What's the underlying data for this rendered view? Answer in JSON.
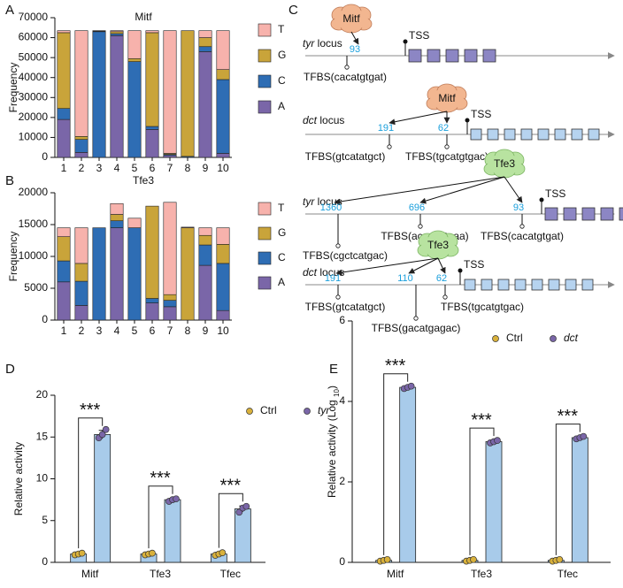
{
  "chart_data": [
    {
      "type": "stacked_bar",
      "label": "A",
      "title": "Mitf",
      "ylabel": "Frequency",
      "categories": [
        "1",
        "2",
        "3",
        "4",
        "5",
        "6",
        "7",
        "8",
        "9",
        "10"
      ],
      "ylim": [
        0,
        70000
      ],
      "yticks": [
        0,
        10000,
        20000,
        30000,
        40000,
        50000,
        60000,
        70000
      ],
      "series": [
        {
          "name": "A",
          "color": "#7a66a8",
          "values": [
            19000,
            2500,
            0,
            61000,
            0,
            14000,
            1000,
            0,
            53000,
            2000
          ]
        },
        {
          "name": "C",
          "color": "#2e6db4",
          "values": [
            5500,
            6500,
            63000,
            1000,
            48000,
            1500,
            500,
            500,
            2500,
            37000
          ]
        },
        {
          "name": "G",
          "color": "#c9a43a",
          "values": [
            38000,
            1500,
            300,
            1000,
            1500,
            47000,
            500,
            63000,
            4500,
            5000
          ]
        },
        {
          "name": "T",
          "color": "#f7b2ac",
          "values": [
            1000,
            53000,
            200,
            500,
            14000,
            1000,
            61500,
            0,
            3500,
            19500
          ]
        }
      ],
      "legend": "right"
    },
    {
      "type": "stacked_bar",
      "label": "B",
      "title": "Tfe3",
      "ylabel": "Frequency",
      "categories": [
        "1",
        "2",
        "3",
        "4",
        "5",
        "6",
        "7",
        "8",
        "9",
        "10"
      ],
      "ylim": [
        0,
        20000
      ],
      "yticks": [
        0,
        5000,
        10000,
        15000,
        20000
      ],
      "series": [
        {
          "name": "A",
          "color": "#7a66a8",
          "values": [
            6000,
            2300,
            0,
            14500,
            0,
            2700,
            2100,
            0,
            8600,
            1500
          ]
        },
        {
          "name": "C",
          "color": "#2e6db4",
          "values": [
            3300,
            3800,
            14500,
            1100,
            14500,
            700,
            1000,
            0,
            3200,
            7400
          ]
        },
        {
          "name": "G",
          "color": "#c9a43a",
          "values": [
            3800,
            2800,
            0,
            1000,
            0,
            14500,
            900,
            14500,
            1500,
            3000
          ]
        },
        {
          "name": "T",
          "color": "#f7b2ac",
          "values": [
            1400,
            5600,
            0,
            1700,
            1500,
            0,
            14500,
            100,
            1200,
            2600
          ]
        }
      ],
      "legend": "right"
    },
    {
      "type": "grouped_bar",
      "label": "D",
      "ylabel": [
        "Relative activity"
      ],
      "categories": [
        "Mitf",
        "Tfe3",
        "Tfec"
      ],
      "ylim": [
        0,
        20
      ],
      "yticks": [
        0,
        5,
        10,
        15,
        20
      ],
      "bar_color": "#a8cbea",
      "series": [
        {
          "name": "Ctrl",
          "color": "#d9b13b",
          "italic": false,
          "values": [
            1,
            1,
            1
          ],
          "errors": [
            0.15,
            0.15,
            0.2
          ],
          "points": [
            [
              0.9,
              1.0,
              1.1
            ],
            [
              0.9,
              1.0,
              1.1
            ],
            [
              0.85,
              1.0,
              1.15
            ]
          ]
        },
        {
          "name": "tyr",
          "color": "#7a66a8",
          "italic": true,
          "values": [
            15.3,
            7.5,
            6.4
          ],
          "errors": [
            0.5,
            0.15,
            0.35
          ],
          "points": [
            [
              14.9,
              15.3,
              15.9
            ],
            [
              7.3,
              7.5,
              7.6
            ],
            [
              6.0,
              6.5,
              6.7
            ]
          ]
        }
      ],
      "annotations": [
        "***",
        "***",
        "***"
      ],
      "legend": "top-right"
    },
    {
      "type": "grouped_bar",
      "label": "E",
      "ylabel": [
        "Relative activity (Log ",
        "10",
        ")"
      ],
      "categories": [
        "Mitf",
        "Tfe3",
        "Tfec"
      ],
      "ylim": [
        0,
        6
      ],
      "yticks": [
        0,
        2,
        4,
        6
      ],
      "bar_color": "#a8cbea",
      "series": [
        {
          "name": "Ctrl",
          "color": "#d9b13b",
          "italic": false,
          "values": [
            0.05,
            0.05,
            0.05
          ],
          "errors": [
            0.02,
            0.02,
            0.02
          ],
          "points": [
            [
              0.03,
              0.05,
              0.07
            ],
            [
              0.03,
              0.05,
              0.07
            ],
            [
              0.03,
              0.05,
              0.07
            ]
          ]
        },
        {
          "name": "dct",
          "color": "#7a66a8",
          "italic": true,
          "values": [
            4.35,
            3.0,
            3.1
          ],
          "errors": [
            0.03,
            0.03,
            0.03
          ],
          "points": [
            [
              4.32,
              4.35,
              4.38
            ],
            [
              2.97,
              3.0,
              3.03
            ],
            [
              3.07,
              3.1,
              3.13
            ]
          ]
        }
      ],
      "annotations": [
        "***",
        "***",
        "***"
      ],
      "legend": "top-right"
    }
  ],
  "diagram": {
    "label": "C",
    "loci": [
      {
        "locus": "tyr",
        "locus_suffix": " locus",
        "factor": "Mitf",
        "color": "#f2b690",
        "box_color": "#8c86c4",
        "tss": "TSS",
        "sites": [
          {
            "position": "93",
            "tfbs": "TFBS(cacatgtgat)"
          }
        ]
      },
      {
        "locus": "dct",
        "locus_suffix": " locus",
        "factor": "Mitf",
        "color": "#f2b690",
        "box_color": "#b6d3ef",
        "tss": "TSS",
        "sites": [
          {
            "position": "191",
            "tfbs": "TFBS(gtcatatgct)"
          },
          {
            "position": "62",
            "tfbs": "TFBS(tgcatgtgac)"
          }
        ]
      },
      {
        "locus": "tyr",
        "locus_suffix": " locus",
        "factor": "Tfe3",
        "color": "#b8e3a0",
        "box_color": "#8c86c4",
        "tss": "TSS",
        "sites": [
          {
            "position": "1360",
            "tfbs": "TFBS(cgctcatgac)"
          },
          {
            "position": "696",
            "tfbs": "TFBS(accacctgaa)"
          },
          {
            "position": "93",
            "tfbs": "TFBS(cacatgtgat)"
          }
        ]
      },
      {
        "locus": "dct",
        "locus_suffix": " locus",
        "factor": "Tfe3",
        "color": "#b8e3a0",
        "box_color": "#b6d3ef",
        "tss": "TSS",
        "sites": [
          {
            "position": "191",
            "tfbs": "TFBS(gtcatatgct)"
          },
          {
            "position": "110",
            "tfbs": "TFBS(gacatgagac)"
          },
          {
            "position": "62",
            "tfbs": "TFBS(tgcatgtgac)"
          }
        ]
      }
    ]
  }
}
